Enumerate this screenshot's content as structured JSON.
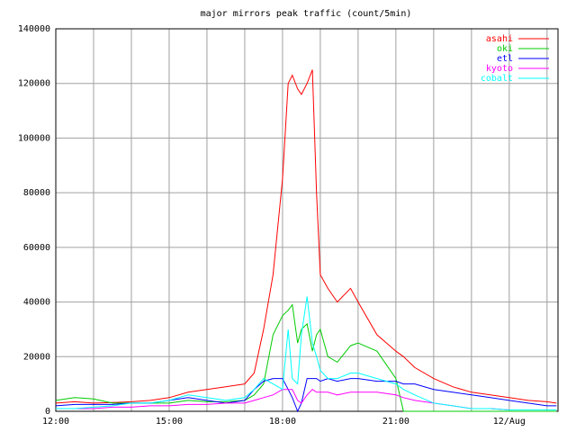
{
  "chart_data": {
    "type": "line",
    "title": "major mirrors peak traffic (count/5min)",
    "x": [
      0,
      0.5,
      1,
      1.5,
      2,
      2.5,
      3,
      3.5,
      4,
      4.5,
      5,
      5.25,
      5.5,
      5.75,
      6,
      6.15,
      6.26,
      6.4,
      6.5,
      6.65,
      6.79,
      6.9,
      7,
      7.2,
      7.45,
      7.8,
      8,
      8.5,
      9,
      9.2,
      9.5,
      10,
      10.5,
      11,
      11.5,
      12,
      12.5,
      13,
      13.25
    ],
    "series": [
      {
        "name": "asahi",
        "color": "#ff0000",
        "values": [
          3000,
          3500,
          3000,
          3200,
          3500,
          4000,
          5000,
          7000,
          8000,
          9000,
          10000,
          14000,
          30000,
          50000,
          85000,
          120000,
          123000,
          118000,
          116000,
          120000,
          125000,
          80000,
          50000,
          45000,
          40000,
          45000,
          40000,
          28000,
          22000,
          20000,
          16000,
          12000,
          9000,
          7000,
          6000,
          5000,
          4000,
          3500,
          3000
        ]
      },
      {
        "name": "oki",
        "color": "#00cc00",
        "values": [
          4000,
          5000,
          4500,
          3000,
          3000,
          3000,
          3000,
          4000,
          3500,
          3500,
          4000,
          6000,
          10000,
          28000,
          35000,
          37000,
          39000,
          25000,
          30000,
          32000,
          22000,
          28000,
          30000,
          20000,
          18000,
          24000,
          25000,
          22000,
          12000,
          0,
          0,
          0,
          0,
          0,
          0,
          0,
          0,
          0,
          0
        ]
      },
      {
        "name": "etl",
        "color": "#0000ff",
        "values": [
          2000,
          2500,
          2500,
          2500,
          3000,
          3000,
          4000,
          5000,
          4000,
          3000,
          4000,
          8000,
          11000,
          12000,
          12000,
          8000,
          5000,
          0,
          3000,
          12000,
          12000,
          12000,
          11000,
          12000,
          11000,
          12000,
          12000,
          11000,
          11000,
          10000,
          10000,
          8000,
          7000,
          6000,
          5000,
          4000,
          3000,
          2000,
          2000
        ]
      },
      {
        "name": "kyoto",
        "color": "#ff00ff",
        "values": [
          1000,
          1000,
          1000,
          1500,
          1500,
          2000,
          2000,
          2500,
          2500,
          3000,
          3000,
          4000,
          5000,
          6000,
          8000,
          8000,
          8000,
          4000,
          3000,
          6000,
          8000,
          7000,
          7000,
          7000,
          6000,
          7000,
          7000,
          7000,
          6000,
          5000,
          4000,
          3000,
          2000,
          1000,
          1000,
          500,
          500,
          500,
          500
        ]
      },
      {
        "name": "cobalt",
        "color": "#00ffff",
        "values": [
          1000,
          1000,
          1500,
          2000,
          3000,
          3000,
          4000,
          6000,
          5000,
          4000,
          5000,
          8000,
          12000,
          10000,
          8000,
          30000,
          12000,
          10000,
          28000,
          42000,
          25000,
          20000,
          15000,
          12000,
          12000,
          14000,
          14000,
          12000,
          10000,
          8000,
          6000,
          3000,
          2000,
          1000,
          1000,
          500,
          500,
          500,
          500
        ]
      }
    ],
    "xlim": [
      0,
      13.29
    ],
    "xticks": [
      {
        "value": 0,
        "label": "12:00"
      },
      {
        "value": 3,
        "label": "15:00"
      },
      {
        "value": 6,
        "label": "18:00"
      },
      {
        "value": 9,
        "label": "21:00"
      },
      {
        "value": 12,
        "label": "12/Aug"
      }
    ],
    "xminorticks": [
      1,
      2,
      4,
      5,
      7,
      8,
      10,
      11,
      13
    ],
    "ylim": [
      0,
      140000
    ],
    "yticks": [
      0,
      20000,
      40000,
      60000,
      80000,
      100000,
      120000,
      140000
    ],
    "grid": true,
    "legend": "top-right"
  }
}
